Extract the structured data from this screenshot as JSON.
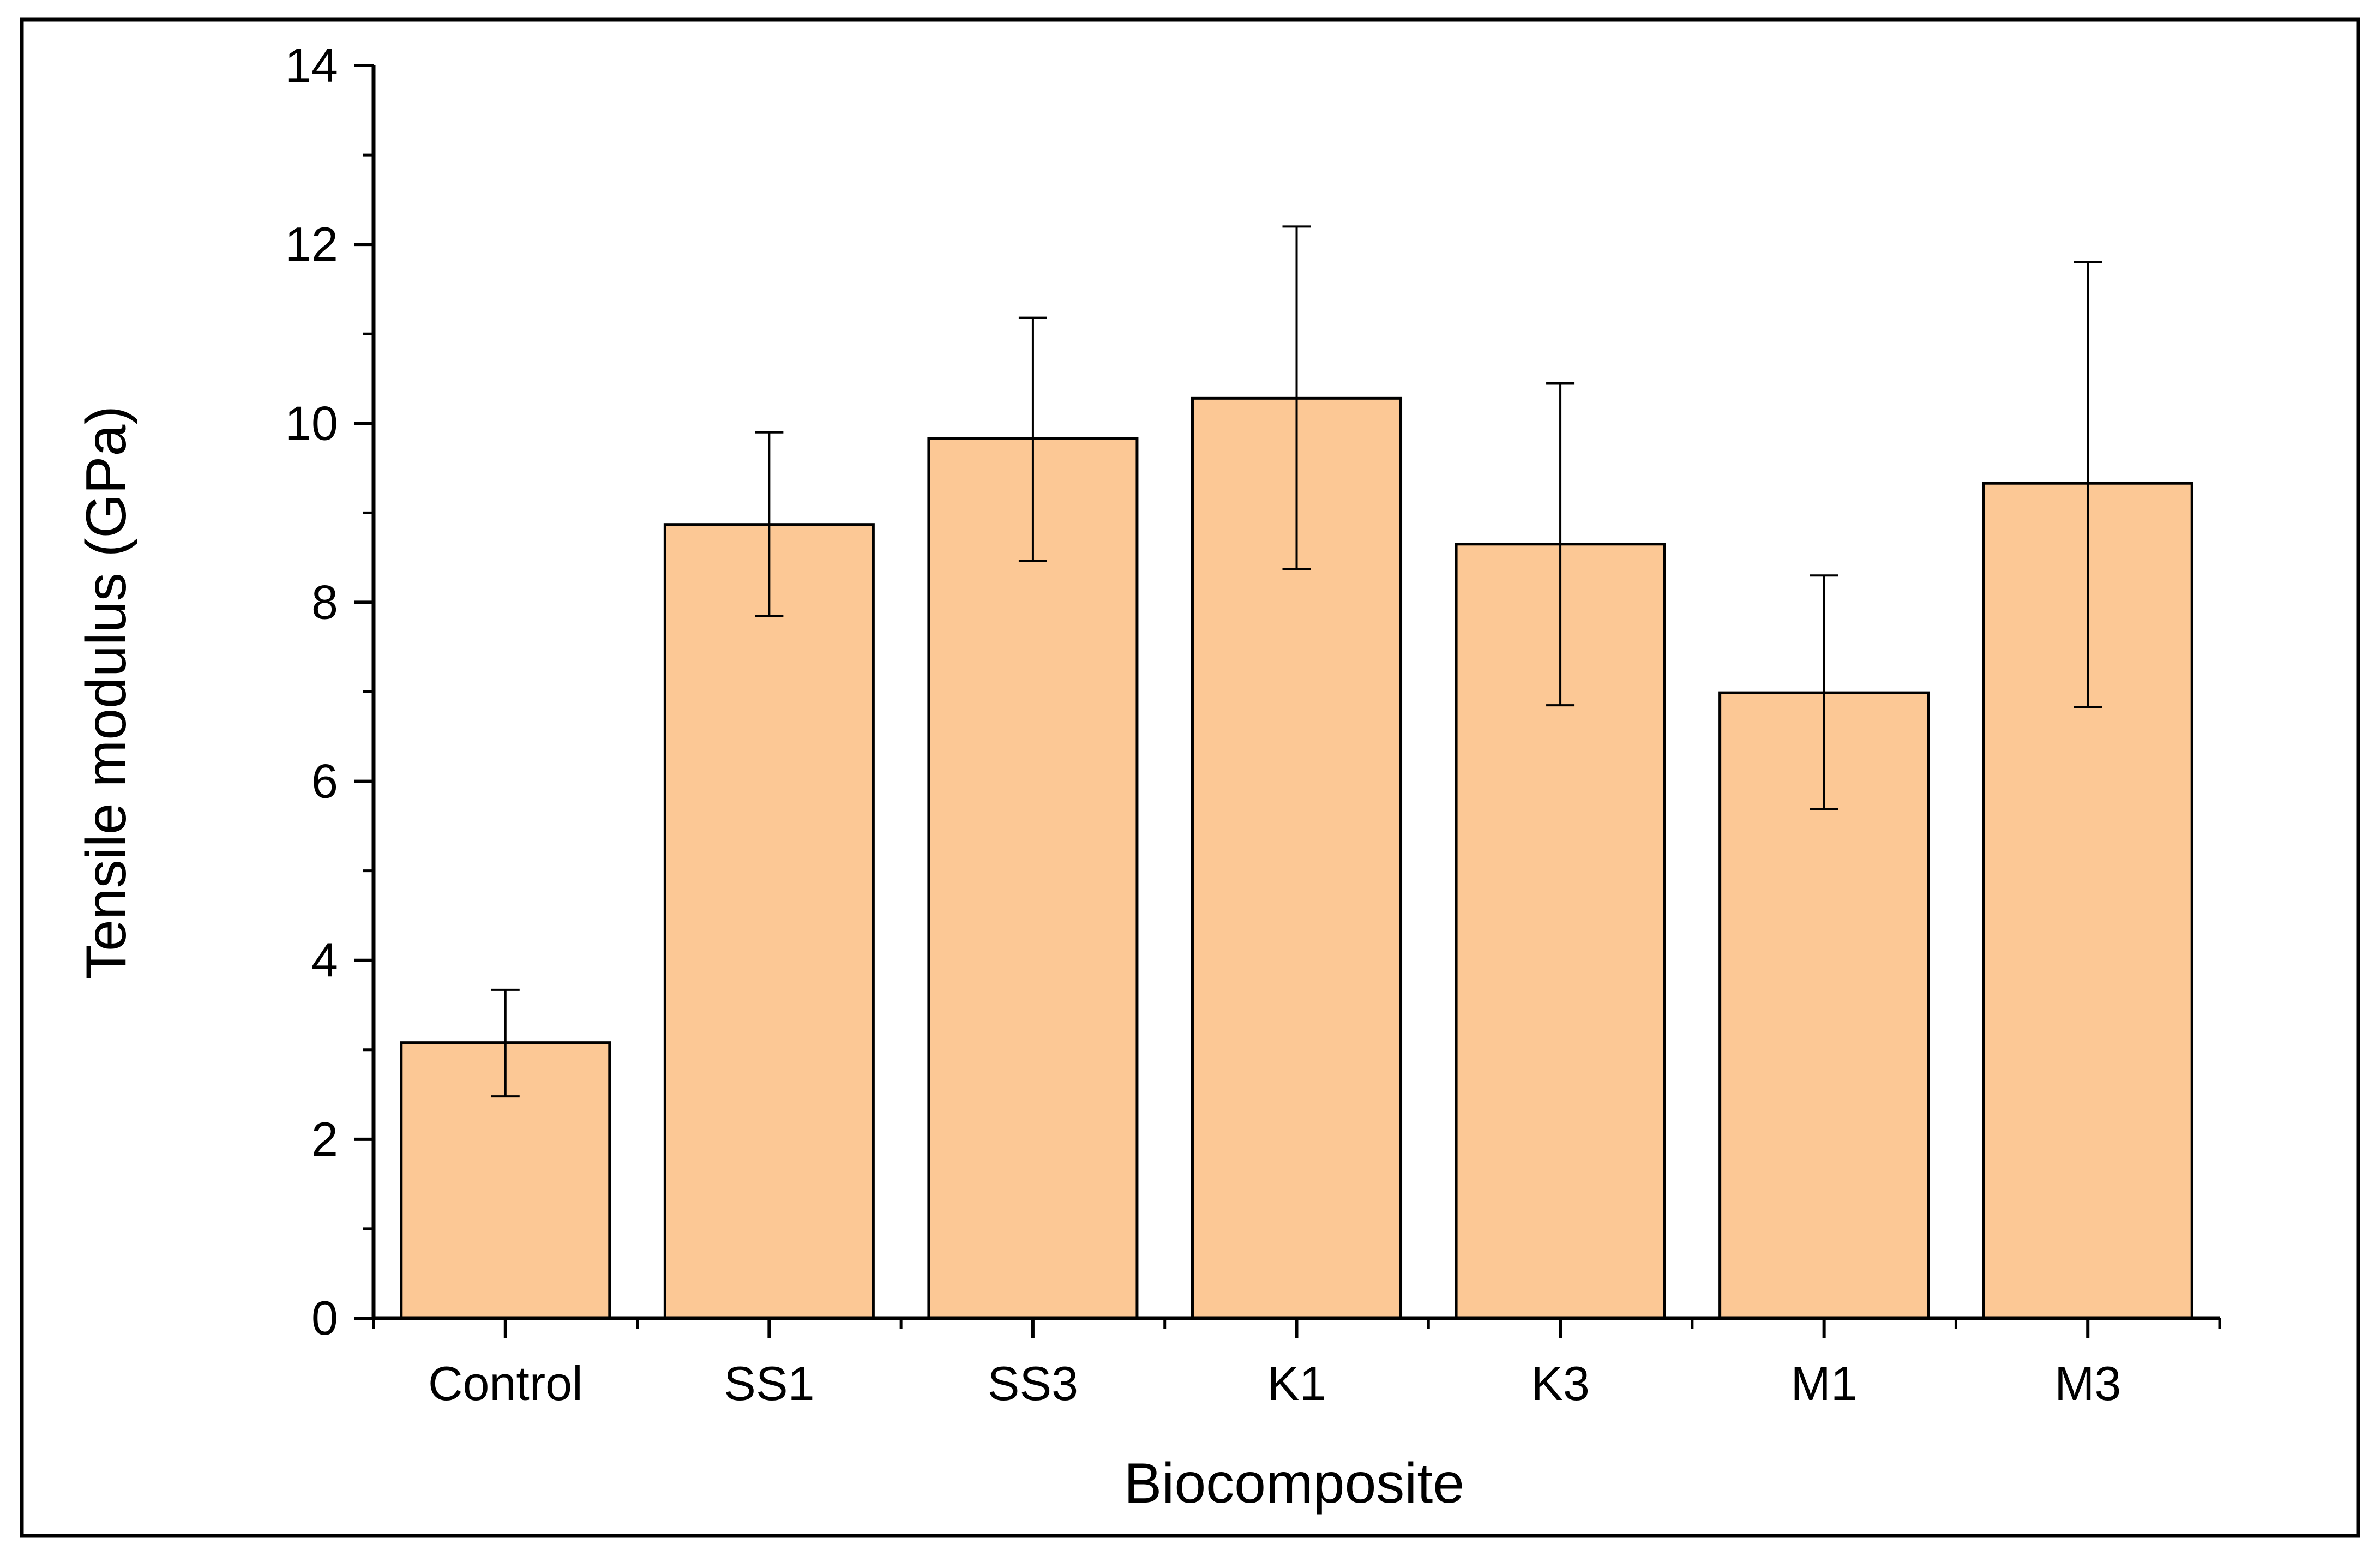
{
  "chart_data": {
    "type": "bar",
    "title": "",
    "xlabel": "Biocomposite",
    "ylabel": "Tensile modulus (GPa)",
    "categories": [
      "Control",
      "SS1",
      "SS3",
      "K1",
      "K3",
      "M1",
      "M3"
    ],
    "values": [
      3.08,
      8.87,
      9.83,
      10.28,
      8.65,
      6.99,
      9.33
    ],
    "error_bars": {
      "lower": [
        2.48,
        7.85,
        8.46,
        8.37,
        6.85,
        5.69,
        6.83
      ],
      "upper": [
        3.67,
        9.9,
        11.18,
        12.2,
        10.45,
        8.3,
        11.8
      ]
    },
    "ylim": [
      0,
      14
    ],
    "y_ticks": [
      0,
      2,
      4,
      6,
      8,
      10,
      12,
      14
    ],
    "y_tick_labels": [
      "0",
      "2",
      "4",
      "6",
      "8",
      "10",
      "12",
      "14"
    ],
    "grid": false,
    "bar_color": "#fcc895",
    "bar_edge_color": "#000000"
  }
}
